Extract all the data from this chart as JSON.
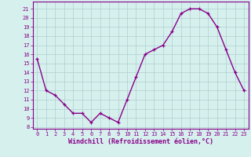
{
  "x": [
    0,
    1,
    2,
    3,
    4,
    5,
    6,
    7,
    8,
    9,
    10,
    11,
    12,
    13,
    14,
    15,
    16,
    17,
    18,
    19,
    20,
    21,
    22,
    23
  ],
  "y": [
    15.5,
    12.0,
    11.5,
    10.5,
    9.5,
    9.5,
    8.5,
    9.5,
    9.0,
    8.5,
    11.0,
    13.5,
    16.0,
    16.5,
    17.0,
    18.5,
    20.5,
    21.0,
    21.0,
    20.5,
    19.0,
    16.5,
    14.0,
    12.0
  ],
  "line_color": "#880088",
  "marker": "+",
  "bg_color": "#d6f0ee",
  "grid_color": "#b0cece",
  "xlabel": "Windchill (Refroidissement éolien,°C)",
  "yticks": [
    8,
    9,
    10,
    11,
    12,
    13,
    14,
    15,
    16,
    17,
    18,
    19,
    20,
    21
  ],
  "xticks": [
    0,
    1,
    2,
    3,
    4,
    5,
    6,
    7,
    8,
    9,
    10,
    11,
    12,
    13,
    14,
    15,
    16,
    17,
    18,
    19,
    20,
    21,
    22,
    23
  ],
  "ylim": [
    7.8,
    21.8
  ],
  "xlim": [
    -0.5,
    23.5
  ]
}
